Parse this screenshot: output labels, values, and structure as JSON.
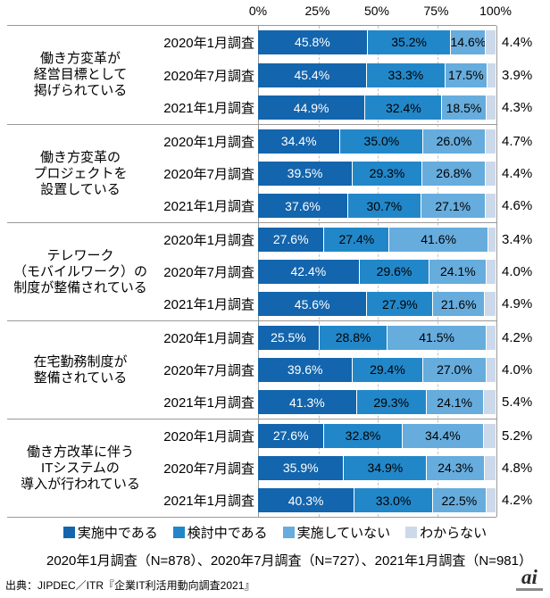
{
  "chart_data": {
    "type": "bar",
    "orientation": "horizontal",
    "stacked": true,
    "unit": "%",
    "xlim": [
      0,
      100
    ],
    "x_ticks": [
      "0%",
      "25%",
      "50%",
      "75%",
      "100%"
    ],
    "grid": "dashed-vertical-at-25-50-75",
    "legend_position": "bottom",
    "series_names": [
      "実施中である",
      "検討中である",
      "実施していない",
      "わからない"
    ],
    "colors": [
      "#1365AD",
      "#2287C9",
      "#66ACDD",
      "#CCD9EA"
    ],
    "groups": [
      {
        "category_lines": [
          "働き方変革が",
          "経営目標として",
          "掲げられている"
        ],
        "rows": [
          {
            "survey": "2020年1月調査",
            "values": [
              45.8,
              35.2,
              14.6,
              4.4
            ]
          },
          {
            "survey": "2020年7月調査",
            "values": [
              45.4,
              33.3,
              17.5,
              3.9
            ]
          },
          {
            "survey": "2021年1月調査",
            "values": [
              44.9,
              32.4,
              18.5,
              4.3
            ]
          }
        ]
      },
      {
        "category_lines": [
          "働き方変革の",
          "プロジェクトを",
          "設置している"
        ],
        "rows": [
          {
            "survey": "2020年1月調査",
            "values": [
              34.4,
              35.0,
              26.0,
              4.7
            ]
          },
          {
            "survey": "2020年7月調査",
            "values": [
              39.5,
              29.3,
              26.8,
              4.4
            ]
          },
          {
            "survey": "2021年1月調査",
            "values": [
              37.6,
              30.7,
              27.1,
              4.6
            ]
          }
        ]
      },
      {
        "category_lines": [
          "テレワーク",
          "（モバイルワーク）の",
          "制度が整備されている"
        ],
        "rows": [
          {
            "survey": "2020年1月調査",
            "values": [
              27.6,
              27.4,
              41.6,
              3.4
            ]
          },
          {
            "survey": "2020年7月調査",
            "values": [
              42.4,
              29.6,
              24.1,
              4.0
            ]
          },
          {
            "survey": "2021年1月調査",
            "values": [
              45.6,
              27.9,
              21.6,
              4.9
            ]
          }
        ]
      },
      {
        "category_lines": [
          "在宅勤務制度が",
          "整備されている"
        ],
        "rows": [
          {
            "survey": "2020年1月調査",
            "values": [
              25.5,
              28.8,
              41.5,
              4.2
            ]
          },
          {
            "survey": "2020年7月調査",
            "values": [
              39.6,
              29.4,
              27.0,
              4.0
            ]
          },
          {
            "survey": "2021年1月調査",
            "values": [
              41.3,
              29.3,
              24.1,
              5.4
            ]
          }
        ]
      },
      {
        "category_lines": [
          "働き方改革に伴う",
          "ITシステムの",
          "導入が行われている"
        ],
        "rows": [
          {
            "survey": "2020年1月調査",
            "values": [
              27.6,
              32.8,
              34.4,
              5.2
            ]
          },
          {
            "survey": "2020年7月調査",
            "values": [
              35.9,
              34.9,
              24.3,
              4.8
            ]
          },
          {
            "survey": "2021年1月調査",
            "values": [
              40.3,
              33.0,
              22.5,
              4.2
            ]
          }
        ]
      }
    ]
  },
  "legend": {
    "items": [
      {
        "label": "実施中である",
        "color": "#1365AD"
      },
      {
        "label": "検討中である",
        "color": "#2287C9"
      },
      {
        "label": "実施していない",
        "color": "#66ACDD"
      },
      {
        "label": "わからない",
        "color": "#CCD9EA"
      }
    ]
  },
  "footer": {
    "note": "2020年1月調査（N=878）、2020年7月調査（N=727）、2021年1月調査（N=981）",
    "source": "出典：JIPDEC／ITR『企業IT利活用動向調査2021』"
  },
  "logo": {
    "text": "ai"
  }
}
